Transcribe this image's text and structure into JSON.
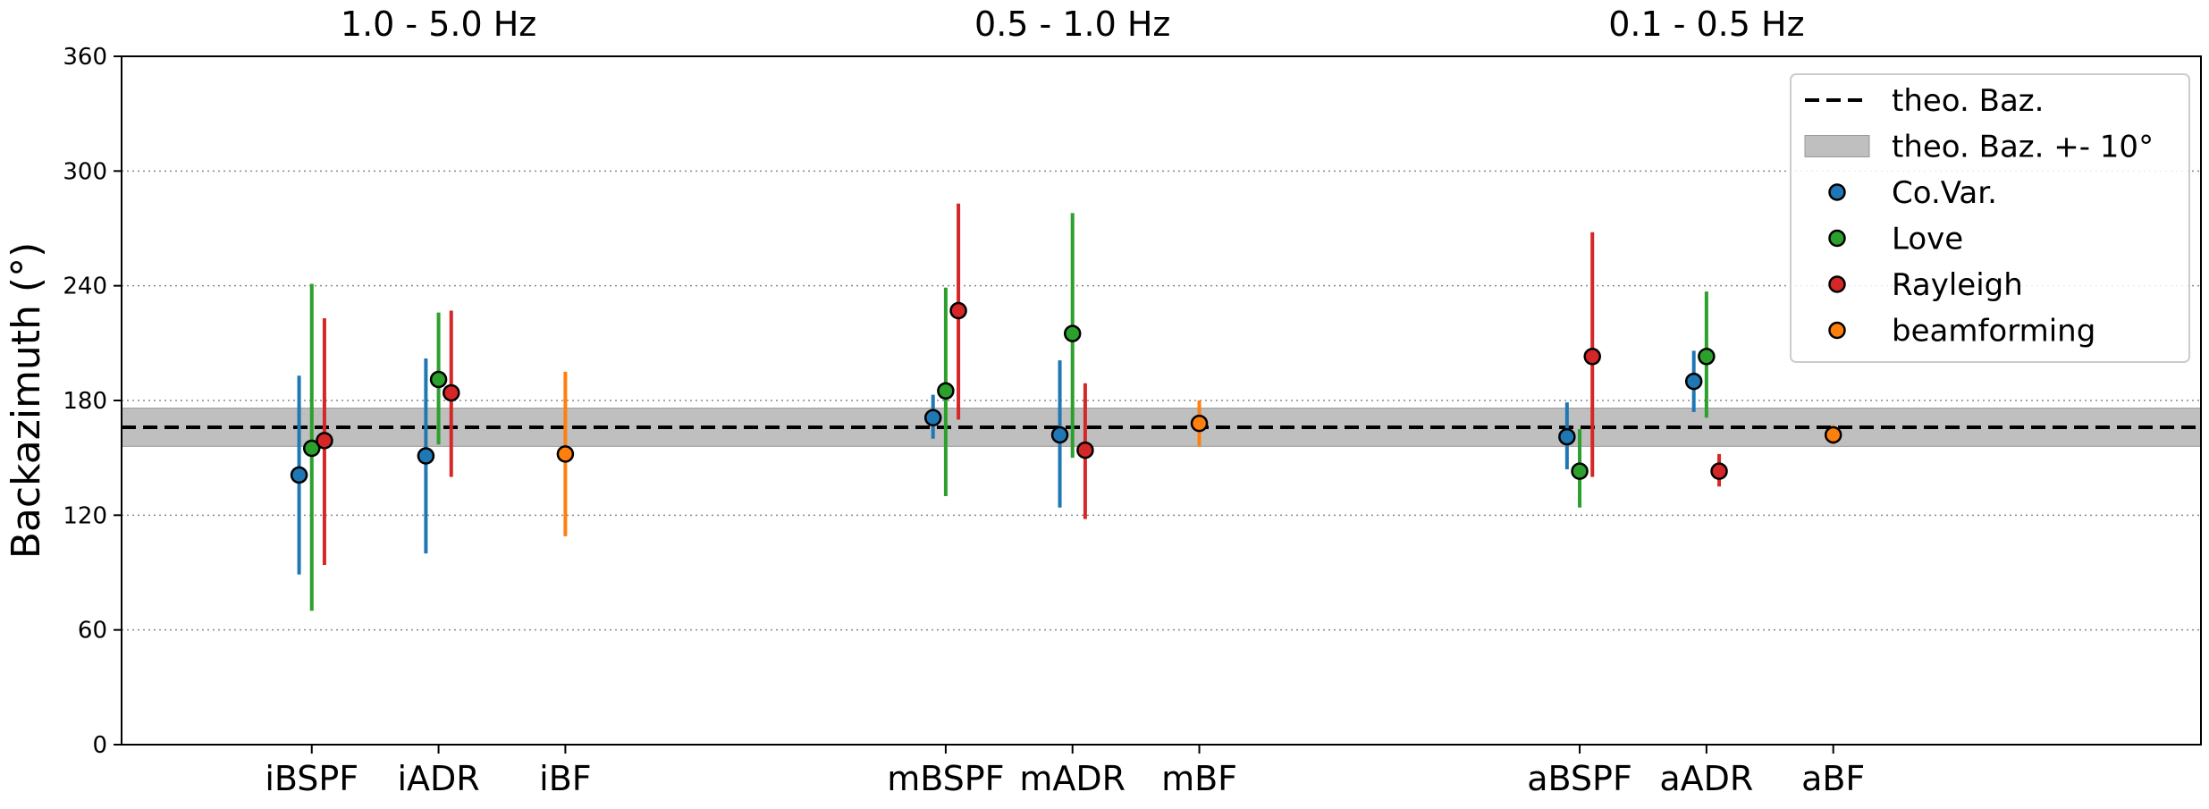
{
  "chart_data": {
    "type": "scatter",
    "title": "",
    "xlabel": "",
    "ylabel": "Backazimuth (°)",
    "ylim": [
      0,
      360
    ],
    "yticks": [
      0,
      60,
      120,
      180,
      240,
      300,
      360
    ],
    "grid": "y-dotted",
    "legend_position": "top-right",
    "categories": [
      "iBSPF",
      "iADR",
      "iBF",
      "mBSPF",
      "mADR",
      "mBF",
      "aBSPF",
      "aADR",
      "aBF"
    ],
    "category_positions": [
      1,
      2,
      3,
      6,
      7,
      8,
      11,
      12,
      13
    ],
    "xlim": [
      -0.5,
      15.9
    ],
    "group_titles": [
      {
        "label": "1.0 - 5.0 Hz",
        "center": 2
      },
      {
        "label": "0.5 - 1.0 Hz",
        "center": 7
      },
      {
        "label": "0.1 - 0.5 Hz",
        "center": 12
      }
    ],
    "theoretical_baz": 166,
    "theoretical_band": [
      156,
      176
    ],
    "reference_legend": [
      {
        "label": "theo. Baz.",
        "kind": "dashed-line",
        "color": "#000000"
      },
      {
        "label": "theo. Baz. +- 10°",
        "kind": "band",
        "color": "#bfbfbf"
      }
    ],
    "series": [
      {
        "name": "Co.Var.",
        "color": "#1f77b4",
        "offset": -0.1,
        "points": [
          {
            "category": "iBSPF",
            "y": 141,
            "low": 89,
            "high": 193
          },
          {
            "category": "iADR",
            "y": 151,
            "low": 100,
            "high": 202
          },
          {
            "category": "mBSPF",
            "y": 171,
            "low": 160,
            "high": 183
          },
          {
            "category": "mADR",
            "y": 162,
            "low": 124,
            "high": 201
          },
          {
            "category": "aBSPF",
            "y": 161,
            "low": 144,
            "high": 179
          },
          {
            "category": "aADR",
            "y": 190,
            "low": 174,
            "high": 206
          }
        ]
      },
      {
        "name": "Love",
        "color": "#2ca02c",
        "offset": 0.0,
        "points": [
          {
            "category": "iBSPF",
            "y": 155,
            "low": 70,
            "high": 241
          },
          {
            "category": "iADR",
            "y": 191,
            "low": 157,
            "high": 226
          },
          {
            "category": "mBSPF",
            "y": 185,
            "low": 130,
            "high": 239
          },
          {
            "category": "mADR",
            "y": 215,
            "low": 150,
            "high": 278
          },
          {
            "category": "aBSPF",
            "y": 143,
            "low": 124,
            "high": 165
          },
          {
            "category": "aADR",
            "y": 203,
            "low": 171,
            "high": 237
          }
        ]
      },
      {
        "name": "Rayleigh",
        "color": "#d62728",
        "offset": 0.1,
        "points": [
          {
            "category": "iBSPF",
            "y": 159,
            "low": 94,
            "high": 223
          },
          {
            "category": "iADR",
            "y": 184,
            "low": 140,
            "high": 227
          },
          {
            "category": "mBSPF",
            "y": 227,
            "low": 170,
            "high": 283
          },
          {
            "category": "mADR",
            "y": 154,
            "low": 118,
            "high": 189
          },
          {
            "category": "aBSPF",
            "y": 203,
            "low": 140,
            "high": 268
          },
          {
            "category": "aADR",
            "y": 143,
            "low": 135,
            "high": 152
          }
        ]
      },
      {
        "name": "beamforming",
        "color": "#ff7f0e",
        "offset": 0.0,
        "points": [
          {
            "category": "iBF",
            "y": 152,
            "low": 109,
            "high": 195
          },
          {
            "category": "mBF",
            "y": 168,
            "low": 156,
            "high": 180
          },
          {
            "category": "aBF",
            "y": 162,
            "low": 157,
            "high": 167
          }
        ]
      }
    ]
  }
}
